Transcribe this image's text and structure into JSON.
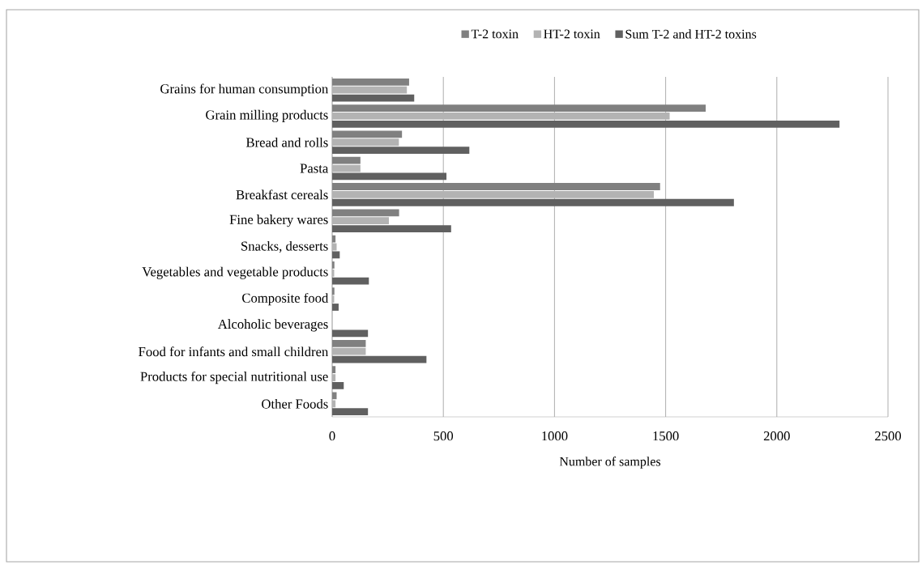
{
  "chart_data": {
    "type": "bar",
    "orientation": "horizontal",
    "categories": [
      "Grains for human consumption",
      "Grain milling products",
      "Bread and rolls",
      "Pasta",
      "Breakfast cereals",
      "Fine bakery wares",
      "Snacks, desserts",
      "Vegetables and vegetable products",
      "Composite food",
      "Alcoholic beverages",
      "Food for infants and small children",
      "Products for special nutritional use",
      "Other Foods"
    ],
    "series": [
      {
        "name": "T-2 toxin",
        "color": "#808080",
        "values": [
          346,
          1680,
          314,
          127,
          1475,
          301,
          15,
          10,
          10,
          0,
          151,
          15,
          20
        ]
      },
      {
        "name": "HT-2 toxin",
        "color": "#b3b3b3",
        "values": [
          336,
          1518,
          300,
          127,
          1447,
          255,
          20,
          9,
          9,
          0,
          151,
          15,
          15
        ]
      },
      {
        "name": "Sum T-2 and HT-2 toxins",
        "color": "#606060",
        "values": [
          369,
          2282,
          617,
          514,
          1807,
          535,
          34,
          165,
          29,
          161,
          424,
          52,
          161
        ]
      }
    ],
    "xlim": [
      0,
      2500
    ],
    "xticks": [
      0,
      500,
      1000,
      1500,
      2000,
      2500
    ],
    "xlabel": "Number of samples",
    "grid": "x",
    "legend": "top"
  }
}
